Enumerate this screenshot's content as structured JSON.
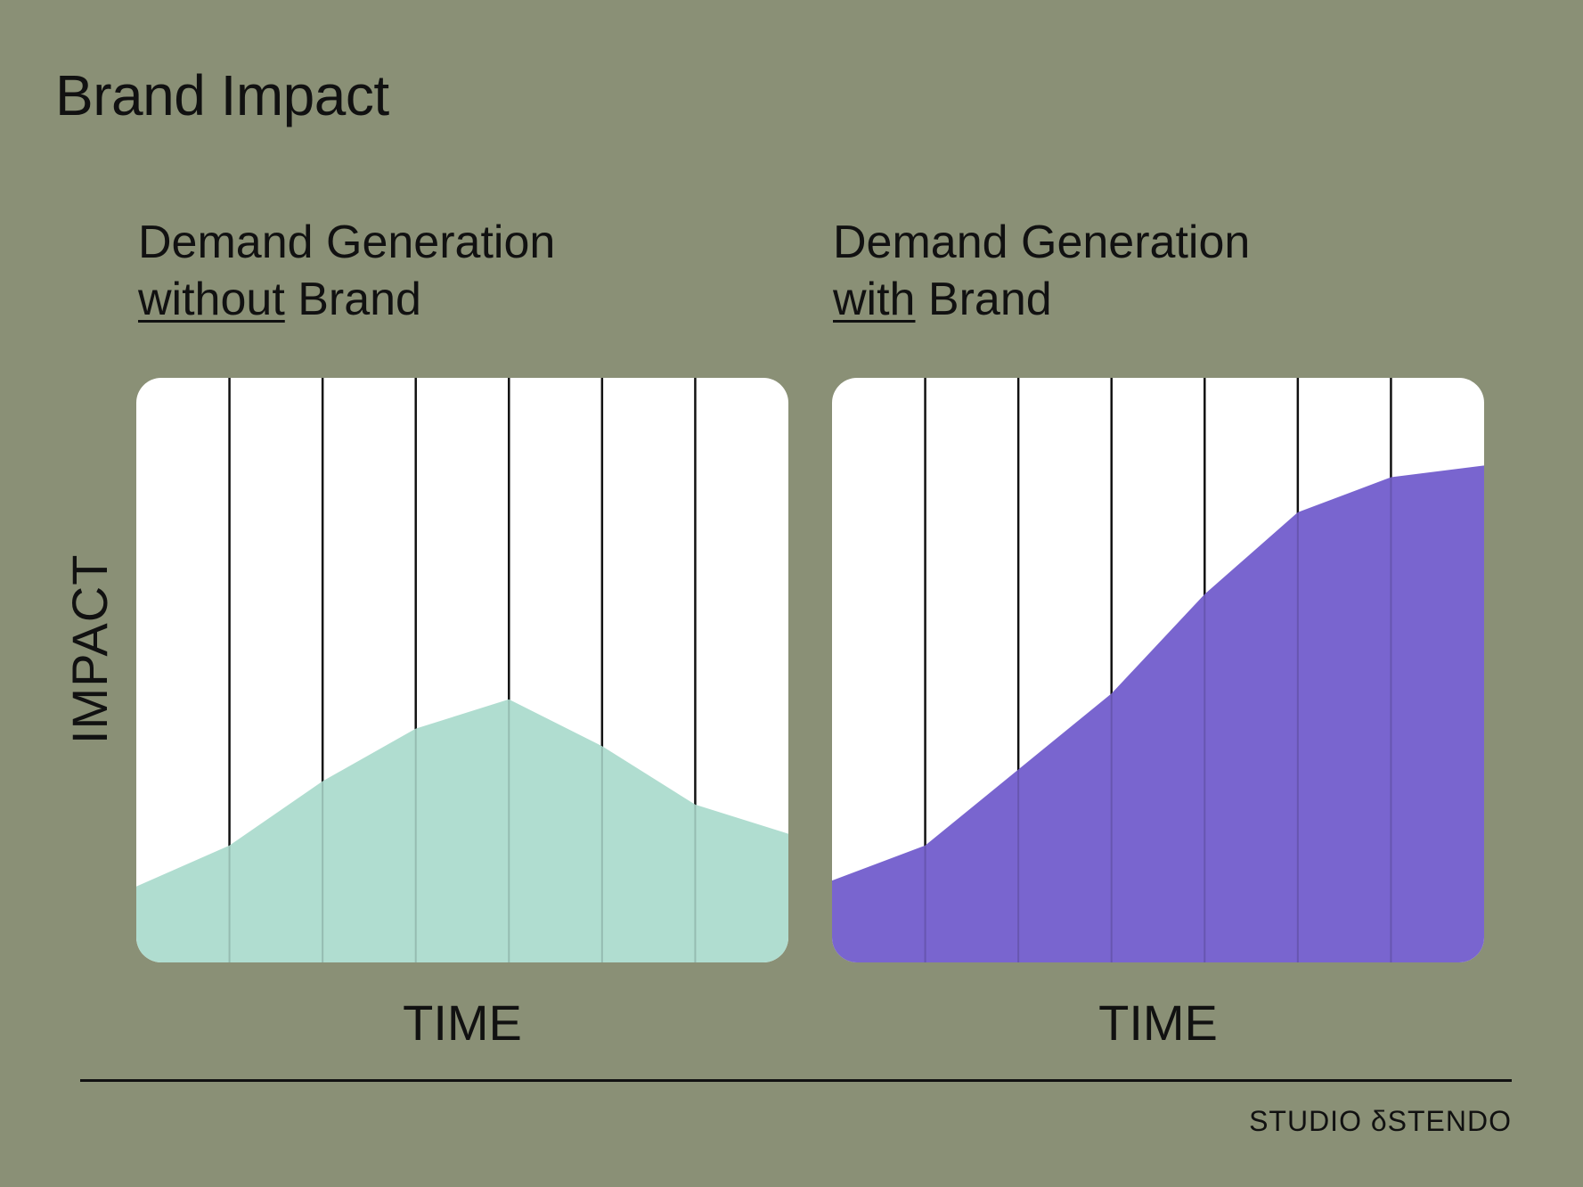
{
  "title": "Brand Impact",
  "ylabel": "IMPACT",
  "brand": "STUDIO δSTENDO",
  "chart_data": [
    {
      "type": "area",
      "subtitle_line1": "Demand Generation",
      "subtitle_emph": "without",
      "subtitle_rest": " Brand",
      "xlabel": "TIME",
      "x": [
        0,
        1,
        2,
        3,
        4,
        5,
        6,
        7
      ],
      "values": [
        13,
        20,
        31,
        40,
        45,
        37,
        27,
        22
      ],
      "ylim": [
        0,
        100
      ],
      "fill": "#b0ddd0"
    },
    {
      "type": "area",
      "subtitle_line1": "Demand Generation",
      "subtitle_emph": "with",
      "subtitle_rest": " Brand",
      "xlabel": "TIME",
      "x": [
        0,
        1,
        2,
        3,
        4,
        5,
        6,
        7
      ],
      "values": [
        14,
        20,
        33,
        46,
        63,
        77,
        83,
        85
      ],
      "ylim": [
        0,
        100
      ],
      "fill": "#7965cf"
    }
  ]
}
